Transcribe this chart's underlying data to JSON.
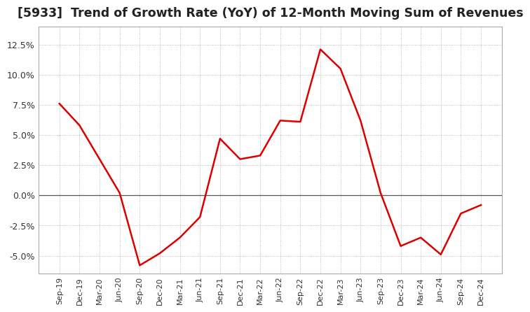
{
  "title": "[5933]  Trend of Growth Rate (YoY) of 12-Month Moving Sum of Revenues",
  "title_fontsize": 12.5,
  "title_color": "#222222",
  "line_color": "#dd0000",
  "background_color": "#ffffff",
  "grid_color": "#aaaaaa",
  "zero_line_color": "#555555",
  "x_labels": [
    "Sep-19",
    "Dec-19",
    "Mar-20",
    "Jun-20",
    "Sep-20",
    "Dec-20",
    "Mar-21",
    "Jun-21",
    "Sep-21",
    "Dec-21",
    "Mar-22",
    "Jun-22",
    "Sep-22",
    "Dec-22",
    "Mar-23",
    "Jun-23",
    "Sep-23",
    "Dec-23",
    "Mar-24",
    "Jun-24",
    "Sep-24",
    "Dec-24"
  ],
  "y_values": [
    7.6,
    5.8,
    3.0,
    0.2,
    -5.8,
    -4.8,
    -3.5,
    -1.8,
    4.7,
    3.0,
    3.3,
    6.2,
    6.1,
    12.1,
    10.5,
    6.2,
    0.2,
    -4.2,
    -3.5,
    -4.9,
    -1.5,
    -0.8
  ],
  "ylim": [
    -6.5,
    14.0
  ],
  "yticks": [
    -5.0,
    -2.5,
    0.0,
    2.5,
    5.0,
    7.5,
    10.0,
    12.5
  ],
  "line_width": 1.8
}
